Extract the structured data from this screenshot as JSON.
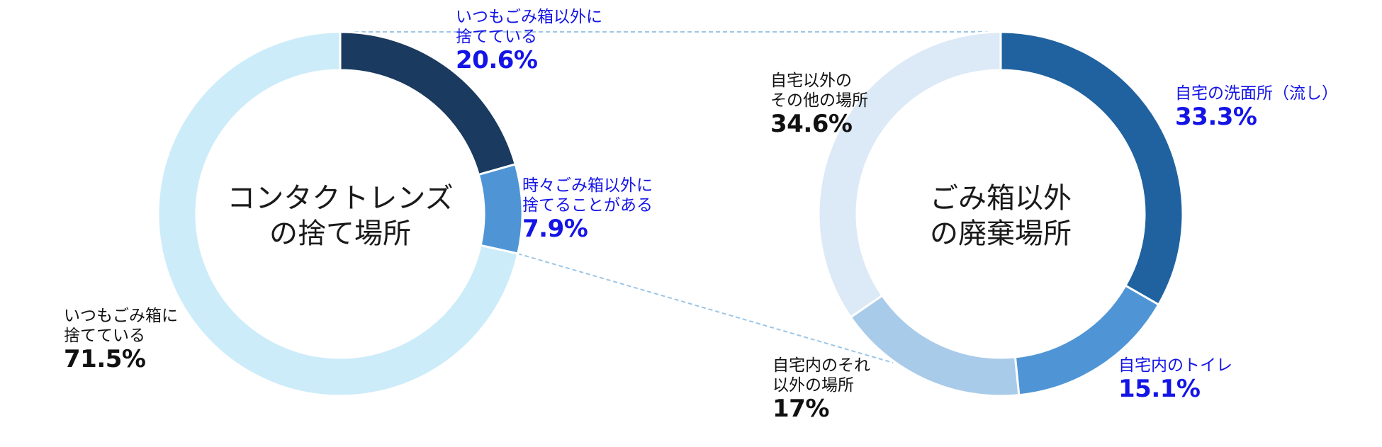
{
  "colors": {
    "highlight_text": "#1414e6",
    "default_text": "#111111",
    "connector": "#9dc6e6"
  },
  "chart_data": [
    {
      "type": "pie",
      "variant": "donut",
      "title_lines": [
        "コンタクトレンズ",
        "の捨て場所"
      ],
      "slices": [
        {
          "label_lines": [
            "いつもごみ箱以外に",
            "捨てている"
          ],
          "value": 20.6,
          "pct_text": "20.6%",
          "color": "#1a3a5f",
          "highlight": true
        },
        {
          "label_lines": [
            "時々ごみ箱以外に",
            "捨てることがある"
          ],
          "value": 7.9,
          "pct_text": "7.9%",
          "color": "#4f95d6",
          "highlight": true
        },
        {
          "label_lines": [
            "いつもごみ箱に",
            "捨てている"
          ],
          "value": 71.5,
          "pct_text": "71.5%",
          "color": "#cdecf9",
          "highlight": false
        }
      ]
    },
    {
      "type": "pie",
      "variant": "donut",
      "title_lines": [
        "ごみ箱以外",
        "の廃棄場所"
      ],
      "slices": [
        {
          "label_lines": [
            "自宅の洗面所（流し）"
          ],
          "value": 33.3,
          "pct_text": "33.3%",
          "color": "#20629f",
          "highlight": true
        },
        {
          "label_lines": [
            "自宅内のトイレ"
          ],
          "value": 15.1,
          "pct_text": "15.1%",
          "color": "#4f95d6",
          "highlight": true
        },
        {
          "label_lines": [
            "自宅内のそれ",
            "以外の場所"
          ],
          "value": 17,
          "pct_text": "17%",
          "color": "#a9cbea",
          "highlight": false
        },
        {
          "label_lines": [
            "自宅以外の",
            "その他の場所"
          ],
          "value": 34.6,
          "pct_text": "34.6%",
          "color": "#dce9f6",
          "highlight": false
        }
      ]
    }
  ]
}
